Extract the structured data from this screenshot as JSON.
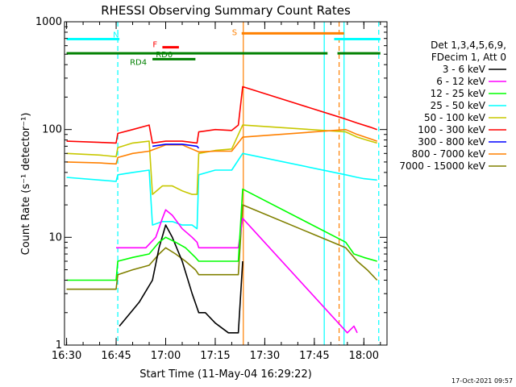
{
  "chart_data": {
    "type": "line",
    "title": "RHESSI Observing Summary Count Rates",
    "xlabel": "Start Time (11-May-04 16:29:22)",
    "ylabel": "Count Rate (s⁻¹ detector⁻¹)",
    "yscale": "log",
    "ylim": [
      1,
      1000
    ],
    "xlim": [
      "16:29:22",
      "18:07:00"
    ],
    "x_ticks": [
      "16:30",
      "16:45",
      "17:00",
      "17:15",
      "17:30",
      "17:45",
      "18:00"
    ],
    "y_ticks": [
      "1",
      "10",
      "100",
      "1000"
    ],
    "legend": {
      "position": "right",
      "header": [
        "Det 1,3,4,5,6,9,",
        "FDecim 1, Att 0"
      ]
    },
    "timestamp": "17-Oct-2021 09:57",
    "flag_bars": [
      {
        "label": "N",
        "color": "#00ffff",
        "level": 690,
        "segments": [
          [
            "16:30",
            "16:46"
          ],
          [
            "17:51",
            "18:05"
          ]
        ]
      },
      {
        "label": "S",
        "color": "#ff8000",
        "level": 780,
        "segments": [
          [
            "17:23",
            "17:54"
          ]
        ]
      },
      {
        "label": "F",
        "color": "#ff0000",
        "level": 580,
        "segments": [
          [
            "16:59",
            "17:04"
          ]
        ]
      },
      {
        "label": "RD0",
        "color": "#008000",
        "level": 510,
        "segments": [
          [
            "16:30",
            "17:49"
          ],
          [
            "17:52",
            "18:05"
          ]
        ]
      },
      {
        "label": "RD4",
        "color": "#008000",
        "level": 450,
        "segments": [
          [
            "16:56",
            "17:09"
          ]
        ]
      }
    ],
    "vlines": [
      {
        "time": "16:45.5",
        "color": "#00ffff",
        "style": "dashed"
      },
      {
        "time": "17:23.5",
        "color": "#ff8000",
        "style": "solid"
      },
      {
        "time": "17:48",
        "color": "#00ffff",
        "style": "solid"
      },
      {
        "time": "17:52.5",
        "color": "#ff8000",
        "style": "dashed"
      },
      {
        "time": "17:54",
        "color": "#00ffff",
        "style": "solid"
      },
      {
        "time": "18:04.5",
        "color": "#00ffff",
        "style": "dashed"
      }
    ],
    "series": [
      {
        "name": "3 - 6 keV",
        "color": "#000000",
        "points": [
          [
            "16:46",
            1.5
          ],
          [
            "16:52",
            2.5
          ],
          [
            "16:56",
            4
          ],
          [
            "16:58",
            8
          ],
          [
            "17:00",
            13
          ],
          [
            "17:02",
            10
          ],
          [
            "17:05",
            6
          ],
          [
            "17:08",
            3
          ],
          [
            "17:10",
            2
          ],
          [
            "17:12",
            2
          ],
          [
            "17:15",
            1.6
          ],
          [
            "17:19",
            1.3
          ],
          [
            "17:22",
            1.3
          ],
          [
            "17:23.3",
            6
          ]
        ]
      },
      {
        "name": "6 - 12 keV",
        "color": "#ff00ff",
        "points": [
          [
            "16:45",
            8
          ],
          [
            "16:50",
            8
          ],
          [
            "16:54",
            8
          ],
          [
            "16:57",
            10
          ],
          [
            "16:59",
            15
          ],
          [
            "17:00",
            18
          ],
          [
            "17:02",
            16
          ],
          [
            "17:05",
            12
          ],
          [
            "17:08",
            10
          ],
          [
            "17:09.5",
            9
          ],
          [
            "17:10",
            8
          ],
          [
            "17:16",
            8
          ],
          [
            "17:22",
            8
          ],
          [
            "17:23.3",
            15
          ],
          [
            "17:55",
            1.3
          ],
          [
            "17:57",
            1.5
          ],
          [
            "17:58",
            1.3
          ]
        ]
      },
      {
        "name": "12 - 25 keV",
        "color": "#00ff00",
        "points": [
          [
            "16:30",
            4
          ],
          [
            "16:35",
            4
          ],
          [
            "16:40",
            4
          ],
          [
            "16:45",
            4
          ],
          [
            "16:45.5",
            6
          ],
          [
            "16:50",
            6.5
          ],
          [
            "16:55",
            7
          ],
          [
            "16:58",
            9
          ],
          [
            "17:00",
            10
          ],
          [
            "17:03",
            9
          ],
          [
            "17:06",
            8
          ],
          [
            "17:09",
            6.5
          ],
          [
            "17:10",
            6
          ],
          [
            "17:15",
            6
          ],
          [
            "17:22",
            6
          ],
          [
            "17:23.3",
            28
          ],
          [
            "17:54.5",
            9
          ],
          [
            "17:57",
            7
          ],
          [
            "18:00",
            6.5
          ],
          [
            "18:04",
            6
          ]
        ]
      },
      {
        "name": "25 - 50 keV",
        "color": "#00ffff",
        "points": [
          [
            "16:30",
            36
          ],
          [
            "16:40",
            34
          ],
          [
            "16:45",
            33
          ],
          [
            "16:45.5",
            38
          ],
          [
            "16:50",
            40
          ],
          [
            "16:55",
            42
          ],
          [
            "16:56",
            13
          ],
          [
            "16:59",
            14
          ],
          [
            "17:02",
            14
          ],
          [
            "17:05",
            13
          ],
          [
            "17:08",
            13
          ],
          [
            "17:09.5",
            12
          ],
          [
            "17:10",
            38
          ],
          [
            "17:15",
            42
          ],
          [
            "17:20",
            42
          ],
          [
            "17:23.3",
            60
          ],
          [
            "17:54.5",
            38
          ],
          [
            "17:58",
            36
          ],
          [
            "18:00",
            35
          ],
          [
            "18:04",
            34
          ]
        ]
      },
      {
        "name": "50 - 100 keV",
        "color": "#c8c800",
        "points": [
          [
            "16:30",
            60
          ],
          [
            "16:40",
            58
          ],
          [
            "16:45",
            56
          ],
          [
            "16:45.5",
            68
          ],
          [
            "16:50",
            75
          ],
          [
            "16:55",
            78
          ],
          [
            "16:56",
            25
          ],
          [
            "16:59",
            30
          ],
          [
            "17:02",
            30
          ],
          [
            "17:05",
            27
          ],
          [
            "17:08",
            25
          ],
          [
            "17:09.5",
            25
          ],
          [
            "17:10",
            60
          ],
          [
            "17:15",
            64
          ],
          [
            "17:20",
            66
          ],
          [
            "17:23.3",
            110
          ],
          [
            "17:54.5",
            95
          ],
          [
            "17:58",
            85
          ],
          [
            "18:02",
            78
          ],
          [
            "18:04",
            75
          ]
        ]
      },
      {
        "name": "100 - 300 keV",
        "color": "#ff0000",
        "points": [
          [
            "16:30",
            78
          ],
          [
            "16:40",
            76
          ],
          [
            "16:45",
            75
          ],
          [
            "16:45.5",
            92
          ],
          [
            "16:50",
            100
          ],
          [
            "16:55",
            110
          ],
          [
            "16:56",
            75
          ],
          [
            "17:00",
            78
          ],
          [
            "17:05",
            78
          ],
          [
            "17:09.5",
            75
          ],
          [
            "17:10",
            95
          ],
          [
            "17:15",
            100
          ],
          [
            "17:20",
            98
          ],
          [
            "17:22",
            110
          ],
          [
            "17:23.3",
            250
          ],
          [
            "17:54.5",
            125
          ],
          [
            "17:58",
            115
          ],
          [
            "18:02",
            105
          ],
          [
            "18:04",
            100
          ]
        ]
      },
      {
        "name": "300 - 800 keV",
        "color": "#0000ff",
        "points": [
          [
            "16:56",
            70
          ],
          [
            "17:00",
            73
          ],
          [
            "17:05",
            73
          ],
          [
            "17:09.5",
            70
          ],
          [
            "17:10",
            67
          ]
        ]
      },
      {
        "name": "800 - 7000 keV",
        "color": "#ff8000",
        "points": [
          [
            "16:30",
            50
          ],
          [
            "16:40",
            49
          ],
          [
            "16:45",
            48
          ],
          [
            "16:45.5",
            55
          ],
          [
            "16:50",
            60
          ],
          [
            "16:55",
            63
          ],
          [
            "17:00",
            72
          ],
          [
            "17:05",
            72
          ],
          [
            "17:10",
            62
          ],
          [
            "17:15",
            63
          ],
          [
            "17:20",
            63
          ],
          [
            "17:23.3",
            85
          ],
          [
            "17:54.5",
            100
          ],
          [
            "17:58",
            90
          ],
          [
            "18:02",
            82
          ],
          [
            "18:04",
            78
          ]
        ]
      },
      {
        "name": "7000 - 15000 keV",
        "color": "#808000",
        "points": [
          [
            "16:30",
            3.3
          ],
          [
            "16:35",
            3.3
          ],
          [
            "16:40",
            3.3
          ],
          [
            "16:45",
            3.3
          ],
          [
            "16:45.5",
            4.5
          ],
          [
            "16:50",
            5
          ],
          [
            "16:55",
            5.5
          ],
          [
            "16:58",
            7
          ],
          [
            "17:00",
            8
          ],
          [
            "17:03",
            7
          ],
          [
            "17:06",
            6
          ],
          [
            "17:09",
            5
          ],
          [
            "17:10",
            4.5
          ],
          [
            "17:15",
            4.5
          ],
          [
            "17:22",
            4.5
          ],
          [
            "17:23.3",
            20
          ],
          [
            "17:54.5",
            8
          ],
          [
            "17:58",
            6
          ],
          [
            "18:01",
            5
          ],
          [
            "18:04",
            4
          ]
        ]
      }
    ]
  }
}
